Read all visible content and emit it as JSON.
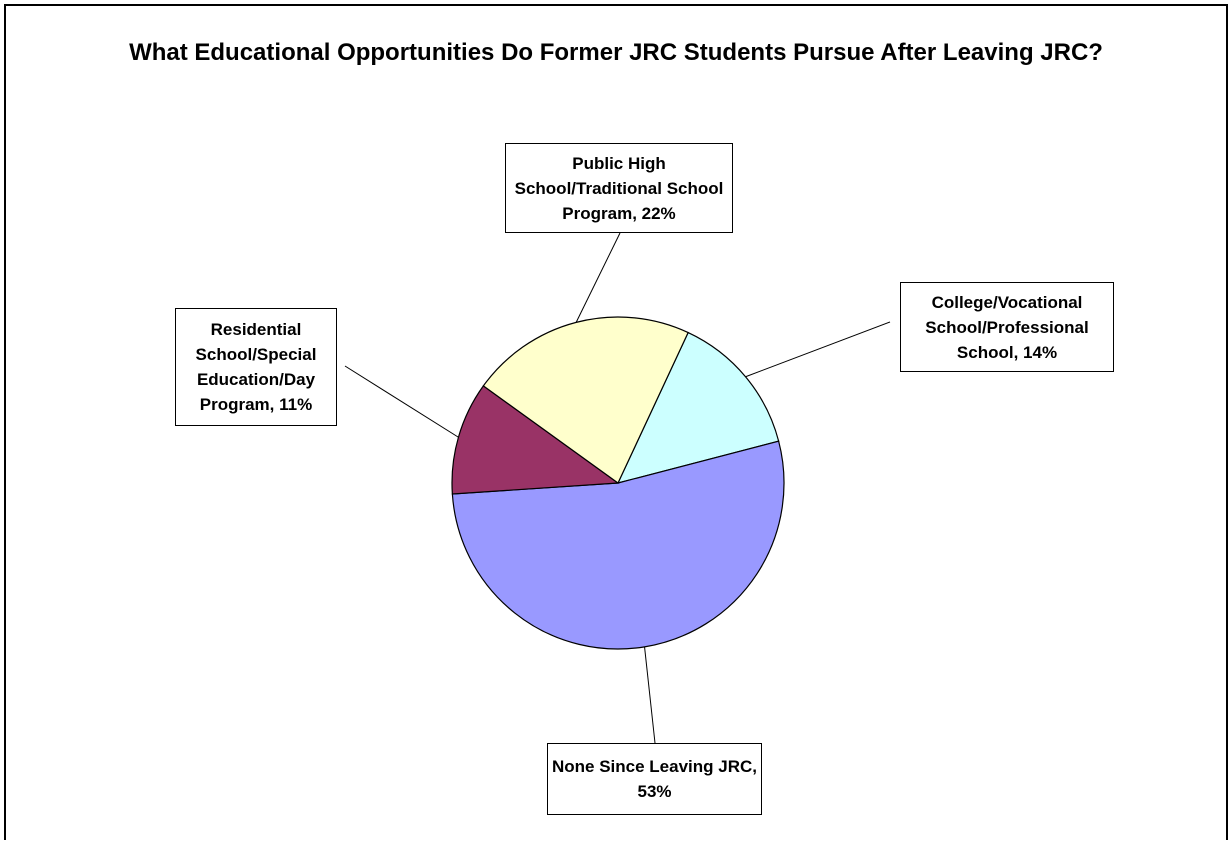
{
  "chart_data": {
    "type": "pie",
    "title": "What Educational Opportunities Do Former JRC Students Pursue After Leaving JRC?",
    "slices": [
      {
        "label": "College/Vocational School/Professional School",
        "value": 14,
        "display": "College/Vocational School/Professional School, 14%",
        "color": "#ccffff"
      },
      {
        "label": "None Since Leaving JRC",
        "value": 53,
        "display": "None Since Leaving JRC, 53%",
        "color": "#9999ff"
      },
      {
        "label": "Residential School/Special Education/Day Program",
        "value": 11,
        "display": "Residential School/Special Education/Day Program, 11%",
        "color": "#993366"
      },
      {
        "label": "Public High School/Traditional School Program",
        "value": 22,
        "display": "Public High School/Traditional School Program, 22%",
        "color": "#ffffcc"
      }
    ],
    "legend": "none",
    "data_labels": "outside with leader lines"
  }
}
